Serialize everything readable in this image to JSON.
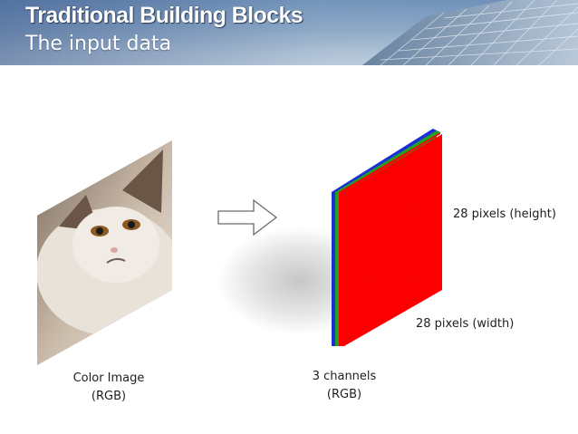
{
  "slide": {
    "title": "Traditional Building Blocks",
    "subtitle": "The input data"
  },
  "input_image": {
    "caption_line1": "Color Image",
    "caption_line2": "(RGB)"
  },
  "tensor": {
    "caption_line1": "3 channels",
    "caption_line2": "(RGB)",
    "height_label": "28 pixels (height)",
    "width_label": "28 pixels (width)",
    "grid_size": 28,
    "channel_colors": [
      "#ff0000",
      "#22a022",
      "#1a2fd6"
    ]
  },
  "icons": [
    "transform-arrow-icon"
  ],
  "colors": {
    "banner_blue": "#6c8fb8",
    "caption_text": "#1e1e1e"
  }
}
